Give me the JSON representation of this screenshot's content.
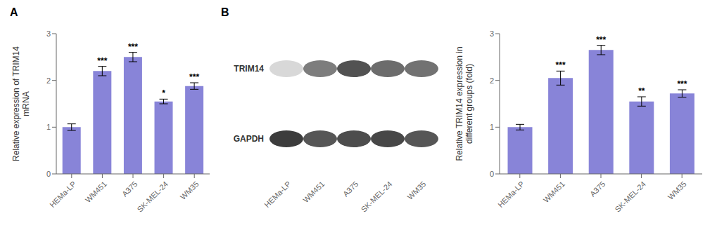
{
  "chart_data": [
    {
      "type": "bar",
      "title": "A",
      "categories": [
        "HEMa-LP",
        "WM451",
        "A375",
        "SK-MEL-24",
        "WM35"
      ],
      "values": [
        1.0,
        2.2,
        2.5,
        1.55,
        1.88
      ],
      "errors": [
        0.07,
        0.1,
        0.1,
        0.05,
        0.07
      ],
      "annotations": [
        {
          "category": "WM451",
          "text": "***"
        },
        {
          "category": "A375",
          "text": "***"
        },
        {
          "category": "SK-MEL-24",
          "text": "*"
        },
        {
          "category": "WM35",
          "text": "***"
        }
      ],
      "y_label": "Relative expression of TRIM14\nmRNA",
      "ylim": [
        0,
        3
      ],
      "yticks": [
        0,
        1,
        2,
        3
      ],
      "color": "#8884d8",
      "grid": false
    },
    {
      "type": "heatmap",
      "title": "B",
      "categories": [
        "HEMa-LP",
        "WM451",
        "A375",
        "SK-MEL-24",
        "WM35"
      ],
      "rows": [
        "TRIM14",
        "GAPDH"
      ],
      "cells": [
        [
          0.18,
          0.6,
          0.8,
          0.68,
          0.65
        ],
        [
          0.9,
          0.78,
          0.82,
          0.85,
          0.78
        ]
      ]
    },
    {
      "type": "bar",
      "categories": [
        "HEMa-LP",
        "WM451",
        "A375",
        "SK-MEL-24",
        "WM35"
      ],
      "values": [
        1.0,
        2.05,
        2.65,
        1.55,
        1.72
      ],
      "errors": [
        0.06,
        0.15,
        0.1,
        0.1,
        0.08
      ],
      "annotations": [
        {
          "category": "WM451",
          "text": "***"
        },
        {
          "category": "A375",
          "text": "***"
        },
        {
          "category": "SK-MEL-24",
          "text": "**"
        },
        {
          "category": "WM35",
          "text": "***"
        }
      ],
      "y_label": "Relative TRIM14 expression in\ndifferent groups (fold)",
      "ylim": [
        0,
        3
      ],
      "yticks": [
        0,
        1,
        2,
        3
      ],
      "color": "#8884d8",
      "grid": false
    }
  ]
}
